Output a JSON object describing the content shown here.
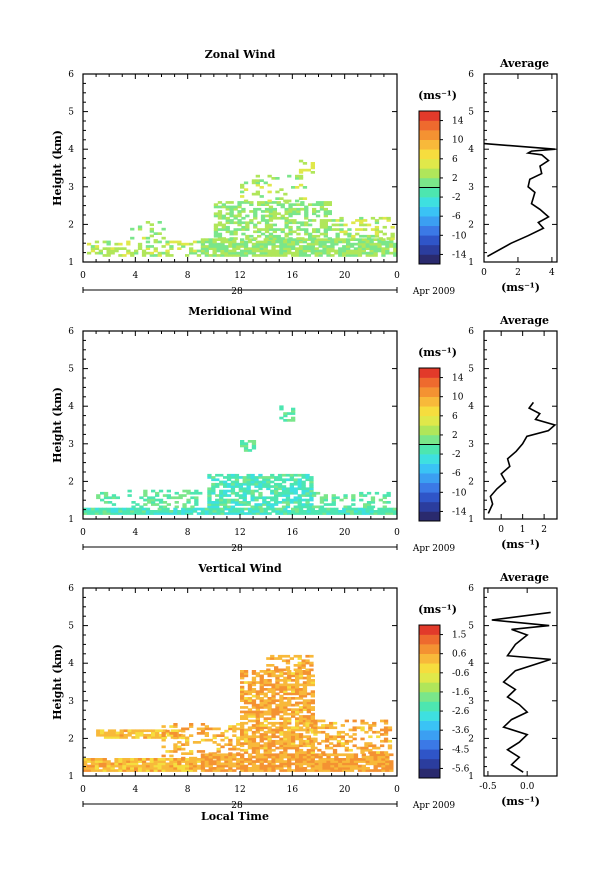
{
  "figure": {
    "xlabel": "Local Time",
    "date_label": "Apr 2009",
    "day_label": "28"
  },
  "chart_data": [
    {
      "type": "heatmap",
      "title": "Zonal Wind",
      "ylabel": "Height (km)",
      "xlim": [
        0,
        24
      ],
      "ylim": [
        1,
        6
      ],
      "xticks": [
        "0",
        "4",
        "8",
        "12",
        "16",
        "20",
        "0"
      ],
      "yticks": [
        "1",
        "2",
        "3",
        "4",
        "5",
        "6"
      ],
      "unit_label": "(ms⁻¹)",
      "colorbar_labels": [
        "14",
        "10",
        "6",
        "2",
        "-2",
        "-6",
        "-10",
        "-14"
      ],
      "colorbar_range": [
        -16,
        16
      ],
      "dominant_value": 2,
      "regions": [
        {
          "x0": 0.3,
          "x1": 9.0,
          "y0": 1.15,
          "y1": 1.55,
          "v": 3,
          "density": 0.45
        },
        {
          "x0": 3.0,
          "x1": 6.0,
          "y0": 1.55,
          "y1": 2.05,
          "v": 3,
          "density": 0.12
        },
        {
          "x0": 9.0,
          "x1": 23.8,
          "y0": 1.15,
          "y1": 1.6,
          "v": 2,
          "density": 0.85
        },
        {
          "x0": 10.0,
          "x1": 19.0,
          "y0": 1.6,
          "y1": 2.6,
          "v": 2,
          "density": 0.55
        },
        {
          "x0": 12.0,
          "x1": 17.0,
          "y0": 2.6,
          "y1": 3.3,
          "v": 3,
          "density": 0.2
        },
        {
          "x0": 16.5,
          "x1": 17.6,
          "y0": 3.3,
          "y1": 3.7,
          "v": 4,
          "density": 0.35
        },
        {
          "x0": 19.0,
          "x1": 23.8,
          "y0": 1.6,
          "y1": 2.2,
          "v": 3,
          "density": 0.4
        }
      ],
      "profile": {
        "title": "Average",
        "xlabel": "(ms⁻¹)",
        "xlim": [
          0,
          4.3
        ],
        "xticks": [
          0,
          2,
          4
        ],
        "ylim": [
          1,
          6
        ],
        "yticks": [
          "1",
          "2",
          "3",
          "4",
          "5",
          "6"
        ],
        "x": [
          0.2,
          1.6,
          2.6,
          3.5,
          3.2,
          3.8,
          3.3,
          2.8,
          2.9,
          3.0,
          2.6,
          2.7,
          3.4,
          3.3,
          3.8,
          3.4,
          2.6,
          2.8,
          4.2,
          0.0
        ],
        "y": [
          1.15,
          1.5,
          1.7,
          1.9,
          2.05,
          2.2,
          2.4,
          2.55,
          2.7,
          2.85,
          3.0,
          3.2,
          3.35,
          3.55,
          3.7,
          3.85,
          3.9,
          3.95,
          4.0,
          4.15
        ]
      }
    },
    {
      "type": "heatmap",
      "title": "Meridional Wind",
      "ylabel": "Height (km)",
      "xlim": [
        0,
        24
      ],
      "ylim": [
        1,
        6
      ],
      "xticks": [
        "0",
        "4",
        "8",
        "12",
        "16",
        "20",
        "0"
      ],
      "yticks": [
        "1",
        "2",
        "3",
        "4",
        "5",
        "6"
      ],
      "unit_label": "(ms⁻¹)",
      "colorbar_labels": [
        "14",
        "10",
        "6",
        "2",
        "-2",
        "-6",
        "-10",
        "-14"
      ],
      "colorbar_range": [
        -16,
        16
      ],
      "dominant_value": -1,
      "regions": [
        {
          "x0": 0.0,
          "x1": 24.0,
          "y0": 1.12,
          "y1": 1.3,
          "v": -1.5,
          "density": 0.95
        },
        {
          "x0": 1.0,
          "x1": 9.0,
          "y0": 1.3,
          "y1": 1.75,
          "v": 0,
          "density": 0.3
        },
        {
          "x0": 9.5,
          "x1": 17.5,
          "y0": 1.3,
          "y1": 2.2,
          "v": -1.2,
          "density": 0.7
        },
        {
          "x0": 17.5,
          "x1": 23.5,
          "y0": 1.3,
          "y1": 1.7,
          "v": 0,
          "density": 0.35
        },
        {
          "x0": 12.0,
          "x1": 13.0,
          "y0": 2.8,
          "y1": 3.1,
          "v": 0,
          "density": 0.5
        },
        {
          "x0": 15.0,
          "x1": 16.2,
          "y0": 3.6,
          "y1": 4.0,
          "v": 0,
          "density": 0.4
        }
      ],
      "profile": {
        "title": "Average",
        "xlabel": "(ms⁻¹)",
        "xlim": [
          -0.8,
          2.6
        ],
        "xticks": [
          0,
          1,
          2
        ],
        "ylim": [
          1,
          6
        ],
        "yticks": [
          "1",
          "2",
          "3",
          "4",
          "5",
          "6"
        ],
        "x": [
          -0.6,
          -0.4,
          -0.5,
          -0.2,
          0.2,
          0.0,
          0.4,
          0.3,
          0.7,
          1.0,
          1.2,
          2.2,
          2.5,
          1.6,
          1.8,
          1.3,
          1.5
        ],
        "y": [
          1.15,
          1.4,
          1.6,
          1.8,
          2.0,
          2.2,
          2.4,
          2.6,
          2.8,
          3.0,
          3.2,
          3.35,
          3.5,
          3.65,
          3.8,
          3.95,
          4.1
        ]
      }
    },
    {
      "type": "heatmap",
      "title": "Vertical Wind",
      "ylabel": "Height (km)",
      "xlim": [
        0,
        24
      ],
      "ylim": [
        1,
        6
      ],
      "xticks": [
        "0",
        "4",
        "8",
        "12",
        "16",
        "20",
        "0"
      ],
      "yticks": [
        "1",
        "2",
        "3",
        "4",
        "5",
        "6"
      ],
      "unit_label": "(ms⁻¹)",
      "colorbar_labels": [
        "1.5",
        "0.6",
        "-0.6",
        "-1.6",
        "-2.6",
        "-3.6",
        "-4.5",
        "-5.6"
      ],
      "colorbar_range": [
        -6.1,
        2.0
      ],
      "dominant_value": 0.3,
      "regions": [
        {
          "x0": 0.0,
          "x1": 9.0,
          "y0": 1.12,
          "y1": 1.45,
          "v": 0.2,
          "density": 0.9
        },
        {
          "x0": 1.0,
          "x1": 7.5,
          "y0": 2.0,
          "y1": 2.2,
          "v": 0.1,
          "density": 0.85
        },
        {
          "x0": 6.0,
          "x1": 12.0,
          "y0": 1.45,
          "y1": 2.4,
          "v": 0.3,
          "density": 0.35
        },
        {
          "x0": 9.0,
          "x1": 23.5,
          "y0": 1.12,
          "y1": 1.6,
          "v": 0.5,
          "density": 0.9
        },
        {
          "x0": 12.0,
          "x1": 17.5,
          "y0": 1.6,
          "y1": 3.8,
          "v": 0.4,
          "density": 0.7
        },
        {
          "x0": 14.0,
          "x1": 17.5,
          "y0": 3.8,
          "y1": 4.2,
          "v": 0.4,
          "density": 0.45
        },
        {
          "x0": 17.0,
          "x1": 23.5,
          "y0": 1.6,
          "y1": 2.5,
          "v": 0.3,
          "density": 0.45
        }
      ],
      "profile": {
        "title": "Average",
        "xlabel": "(ms⁻¹)",
        "xlim": [
          -0.55,
          0.38
        ],
        "xticks": [
          -0.5,
          0.0
        ],
        "ylim": [
          1,
          6
        ],
        "yticks": [
          "1",
          "2",
          "3",
          "4",
          "5",
          "6"
        ],
        "x": [
          -0.05,
          -0.2,
          -0.1,
          -0.25,
          -0.1,
          0.0,
          -0.3,
          -0.2,
          0.0,
          -0.1,
          -0.25,
          -0.15,
          -0.3,
          -0.15,
          0.3,
          -0.25,
          -0.15,
          0.0,
          -0.2,
          0.28,
          -0.45,
          0.3
        ],
        "y": [
          1.1,
          1.3,
          1.5,
          1.7,
          1.9,
          2.1,
          2.3,
          2.5,
          2.7,
          2.9,
          3.1,
          3.3,
          3.5,
          3.8,
          4.1,
          4.2,
          4.5,
          4.75,
          4.9,
          5.0,
          5.15,
          5.35
        ]
      }
    }
  ]
}
